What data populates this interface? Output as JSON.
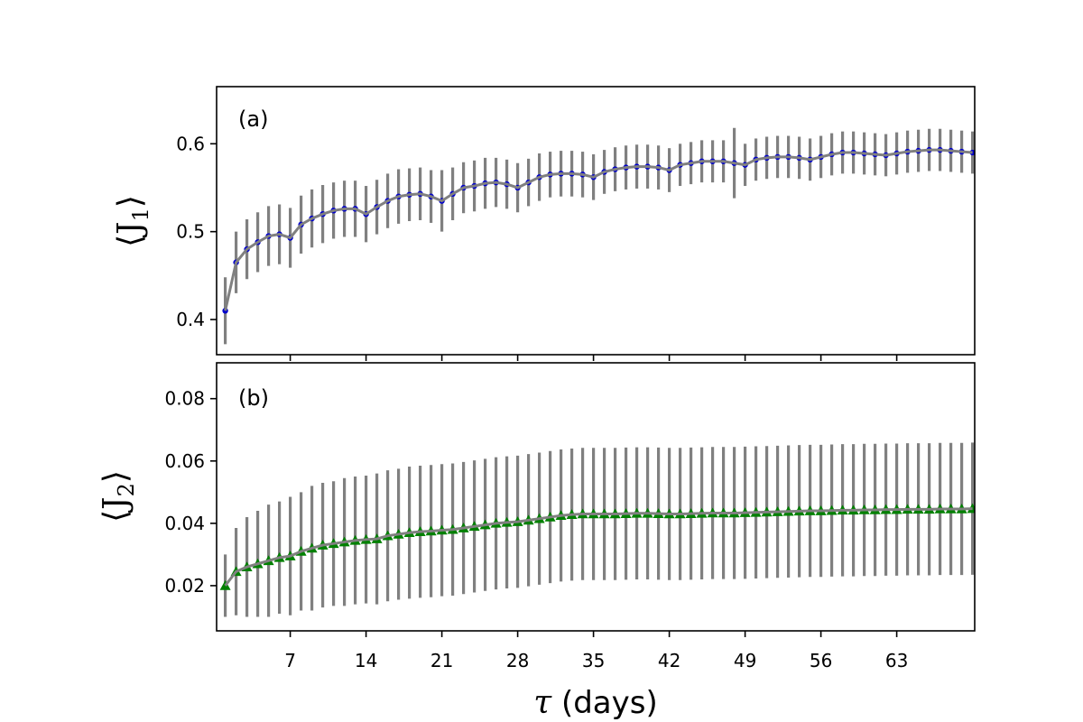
{
  "chart_data": [
    {
      "type": "line",
      "panel_label": "(a)",
      "ylabel": "⟨J₁⟩",
      "ylabel_main": "⟨J",
      "ylabel_sub": "1",
      "ylabel_close": "⟩",
      "ylim": [
        0.36,
        0.665
      ],
      "yticks": [
        0.4,
        0.5,
        0.6
      ],
      "ytick_labels": [
        "0.4",
        "0.5",
        "0.6"
      ],
      "marker": "circle",
      "marker_color": "#0000cc",
      "line_color": "#808080",
      "errorbar_color": "#808080",
      "series": [
        {
          "name": "J1",
          "x": [
            1,
            2,
            3,
            4,
            5,
            6,
            7,
            8,
            9,
            10,
            11,
            12,
            13,
            14,
            15,
            16,
            17,
            18,
            19,
            20,
            21,
            22,
            23,
            24,
            25,
            26,
            27,
            28,
            29,
            30,
            31,
            32,
            33,
            34,
            35,
            36,
            37,
            38,
            39,
            40,
            41,
            42,
            43,
            44,
            45,
            46,
            47,
            48,
            49,
            50,
            51,
            52,
            53,
            54,
            55,
            56,
            57,
            58,
            59,
            60,
            61,
            62,
            63,
            64,
            65,
            66,
            67,
            68,
            69,
            70
          ],
          "values": [
            0.41,
            0.465,
            0.48,
            0.488,
            0.495,
            0.497,
            0.493,
            0.508,
            0.515,
            0.52,
            0.524,
            0.526,
            0.526,
            0.52,
            0.528,
            0.535,
            0.54,
            0.542,
            0.543,
            0.54,
            0.535,
            0.543,
            0.55,
            0.552,
            0.555,
            0.556,
            0.554,
            0.55,
            0.556,
            0.562,
            0.565,
            0.566,
            0.566,
            0.565,
            0.562,
            0.568,
            0.571,
            0.573,
            0.574,
            0.574,
            0.573,
            0.57,
            0.576,
            0.578,
            0.58,
            0.58,
            0.58,
            0.578,
            0.576,
            0.582,
            0.584,
            0.585,
            0.585,
            0.584,
            0.582,
            0.585,
            0.588,
            0.59,
            0.59,
            0.589,
            0.588,
            0.587,
            0.589,
            0.591,
            0.592,
            0.593,
            0.593,
            0.592,
            0.591,
            0.59
          ],
          "errors": [
            0.038,
            0.035,
            0.034,
            0.034,
            0.034,
            0.034,
            0.034,
            0.033,
            0.033,
            0.033,
            0.032,
            0.032,
            0.032,
            0.032,
            0.031,
            0.031,
            0.031,
            0.03,
            0.03,
            0.03,
            0.035,
            0.03,
            0.029,
            0.029,
            0.029,
            0.028,
            0.028,
            0.028,
            0.027,
            0.027,
            0.026,
            0.026,
            0.026,
            0.026,
            0.026,
            0.025,
            0.025,
            0.025,
            0.025,
            0.025,
            0.025,
            0.025,
            0.024,
            0.024,
            0.024,
            0.024,
            0.024,
            0.04,
            0.024,
            0.024,
            0.024,
            0.024,
            0.024,
            0.024,
            0.024,
            0.024,
            0.024,
            0.024,
            0.024,
            0.024,
            0.024,
            0.024,
            0.024,
            0.024,
            0.024,
            0.024,
            0.024,
            0.024,
            0.024,
            0.024
          ]
        }
      ]
    },
    {
      "type": "line",
      "panel_label": "(b)",
      "ylabel": "⟨J₂⟩",
      "ylabel_main": "⟨J",
      "ylabel_sub": "2",
      "ylabel_close": "⟩",
      "ylim": [
        0.0055,
        0.0915
      ],
      "yticks": [
        0.02,
        0.04,
        0.06,
        0.08
      ],
      "ytick_labels": [
        "0.02",
        "0.04",
        "0.06",
        "0.08"
      ],
      "marker": "triangle",
      "marker_color": "#008000",
      "line_color": "#808080",
      "errorbar_color": "#808080",
      "series": [
        {
          "name": "J2",
          "x": [
            1,
            2,
            3,
            4,
            5,
            6,
            7,
            8,
            9,
            10,
            11,
            12,
            13,
            14,
            15,
            16,
            17,
            18,
            19,
            20,
            21,
            22,
            23,
            24,
            25,
            26,
            27,
            28,
            29,
            30,
            31,
            32,
            33,
            34,
            35,
            36,
            37,
            38,
            39,
            40,
            41,
            42,
            43,
            44,
            45,
            46,
            47,
            48,
            49,
            50,
            51,
            52,
            53,
            54,
            55,
            56,
            57,
            58,
            59,
            60,
            61,
            62,
            63,
            64,
            65,
            66,
            67,
            68,
            69,
            70
          ],
          "values": [
            0.02,
            0.0245,
            0.026,
            0.027,
            0.028,
            0.029,
            0.0295,
            0.031,
            0.032,
            0.033,
            0.0335,
            0.034,
            0.0345,
            0.0348,
            0.035,
            0.036,
            0.0365,
            0.037,
            0.0373,
            0.0375,
            0.0378,
            0.038,
            0.0385,
            0.039,
            0.0395,
            0.04,
            0.0403,
            0.0405,
            0.041,
            0.0415,
            0.042,
            0.0425,
            0.0428,
            0.043,
            0.043,
            0.043,
            0.043,
            0.0431,
            0.0432,
            0.0432,
            0.0431,
            0.043,
            0.043,
            0.0431,
            0.0432,
            0.0433,
            0.0433,
            0.0433,
            0.0434,
            0.0435,
            0.0436,
            0.0437,
            0.0438,
            0.0439,
            0.044,
            0.044,
            0.0441,
            0.0442,
            0.0442,
            0.0443,
            0.0443,
            0.0444,
            0.0444,
            0.0445,
            0.0445,
            0.0445,
            0.0446,
            0.0446,
            0.0446,
            0.0447
          ],
          "errors": [
            0.01,
            0.014,
            0.016,
            0.017,
            0.018,
            0.018,
            0.019,
            0.019,
            0.02,
            0.02,
            0.02,
            0.0205,
            0.0205,
            0.0205,
            0.021,
            0.021,
            0.021,
            0.0212,
            0.0212,
            0.0212,
            0.0212,
            0.0212,
            0.0212,
            0.0212,
            0.0212,
            0.0212,
            0.0212,
            0.0212,
            0.0212,
            0.0212,
            0.0212,
            0.0212,
            0.0212,
            0.0212,
            0.0212,
            0.0212,
            0.0212,
            0.0212,
            0.0212,
            0.0212,
            0.0212,
            0.0212,
            0.0212,
            0.0212,
            0.0212,
            0.0212,
            0.0212,
            0.0212,
            0.0212,
            0.0212,
            0.0212,
            0.0212,
            0.0212,
            0.0212,
            0.0212,
            0.0212,
            0.0212,
            0.0212,
            0.0212,
            0.0212,
            0.0212,
            0.0212,
            0.0212,
            0.0212,
            0.0212,
            0.0212,
            0.0212,
            0.0212,
            0.0212,
            0.0212
          ]
        }
      ]
    }
  ],
  "shared_x": {
    "xlabel_symbol": "τ",
    "xlabel_text": " (days)",
    "xlim": [
      0.2,
      70.2
    ],
    "xticks": [
      7,
      14,
      21,
      28,
      35,
      42,
      49,
      56,
      63
    ],
    "xtick_labels": [
      "7",
      "14",
      "21",
      "28",
      "35",
      "42",
      "49",
      "56",
      "63"
    ]
  }
}
